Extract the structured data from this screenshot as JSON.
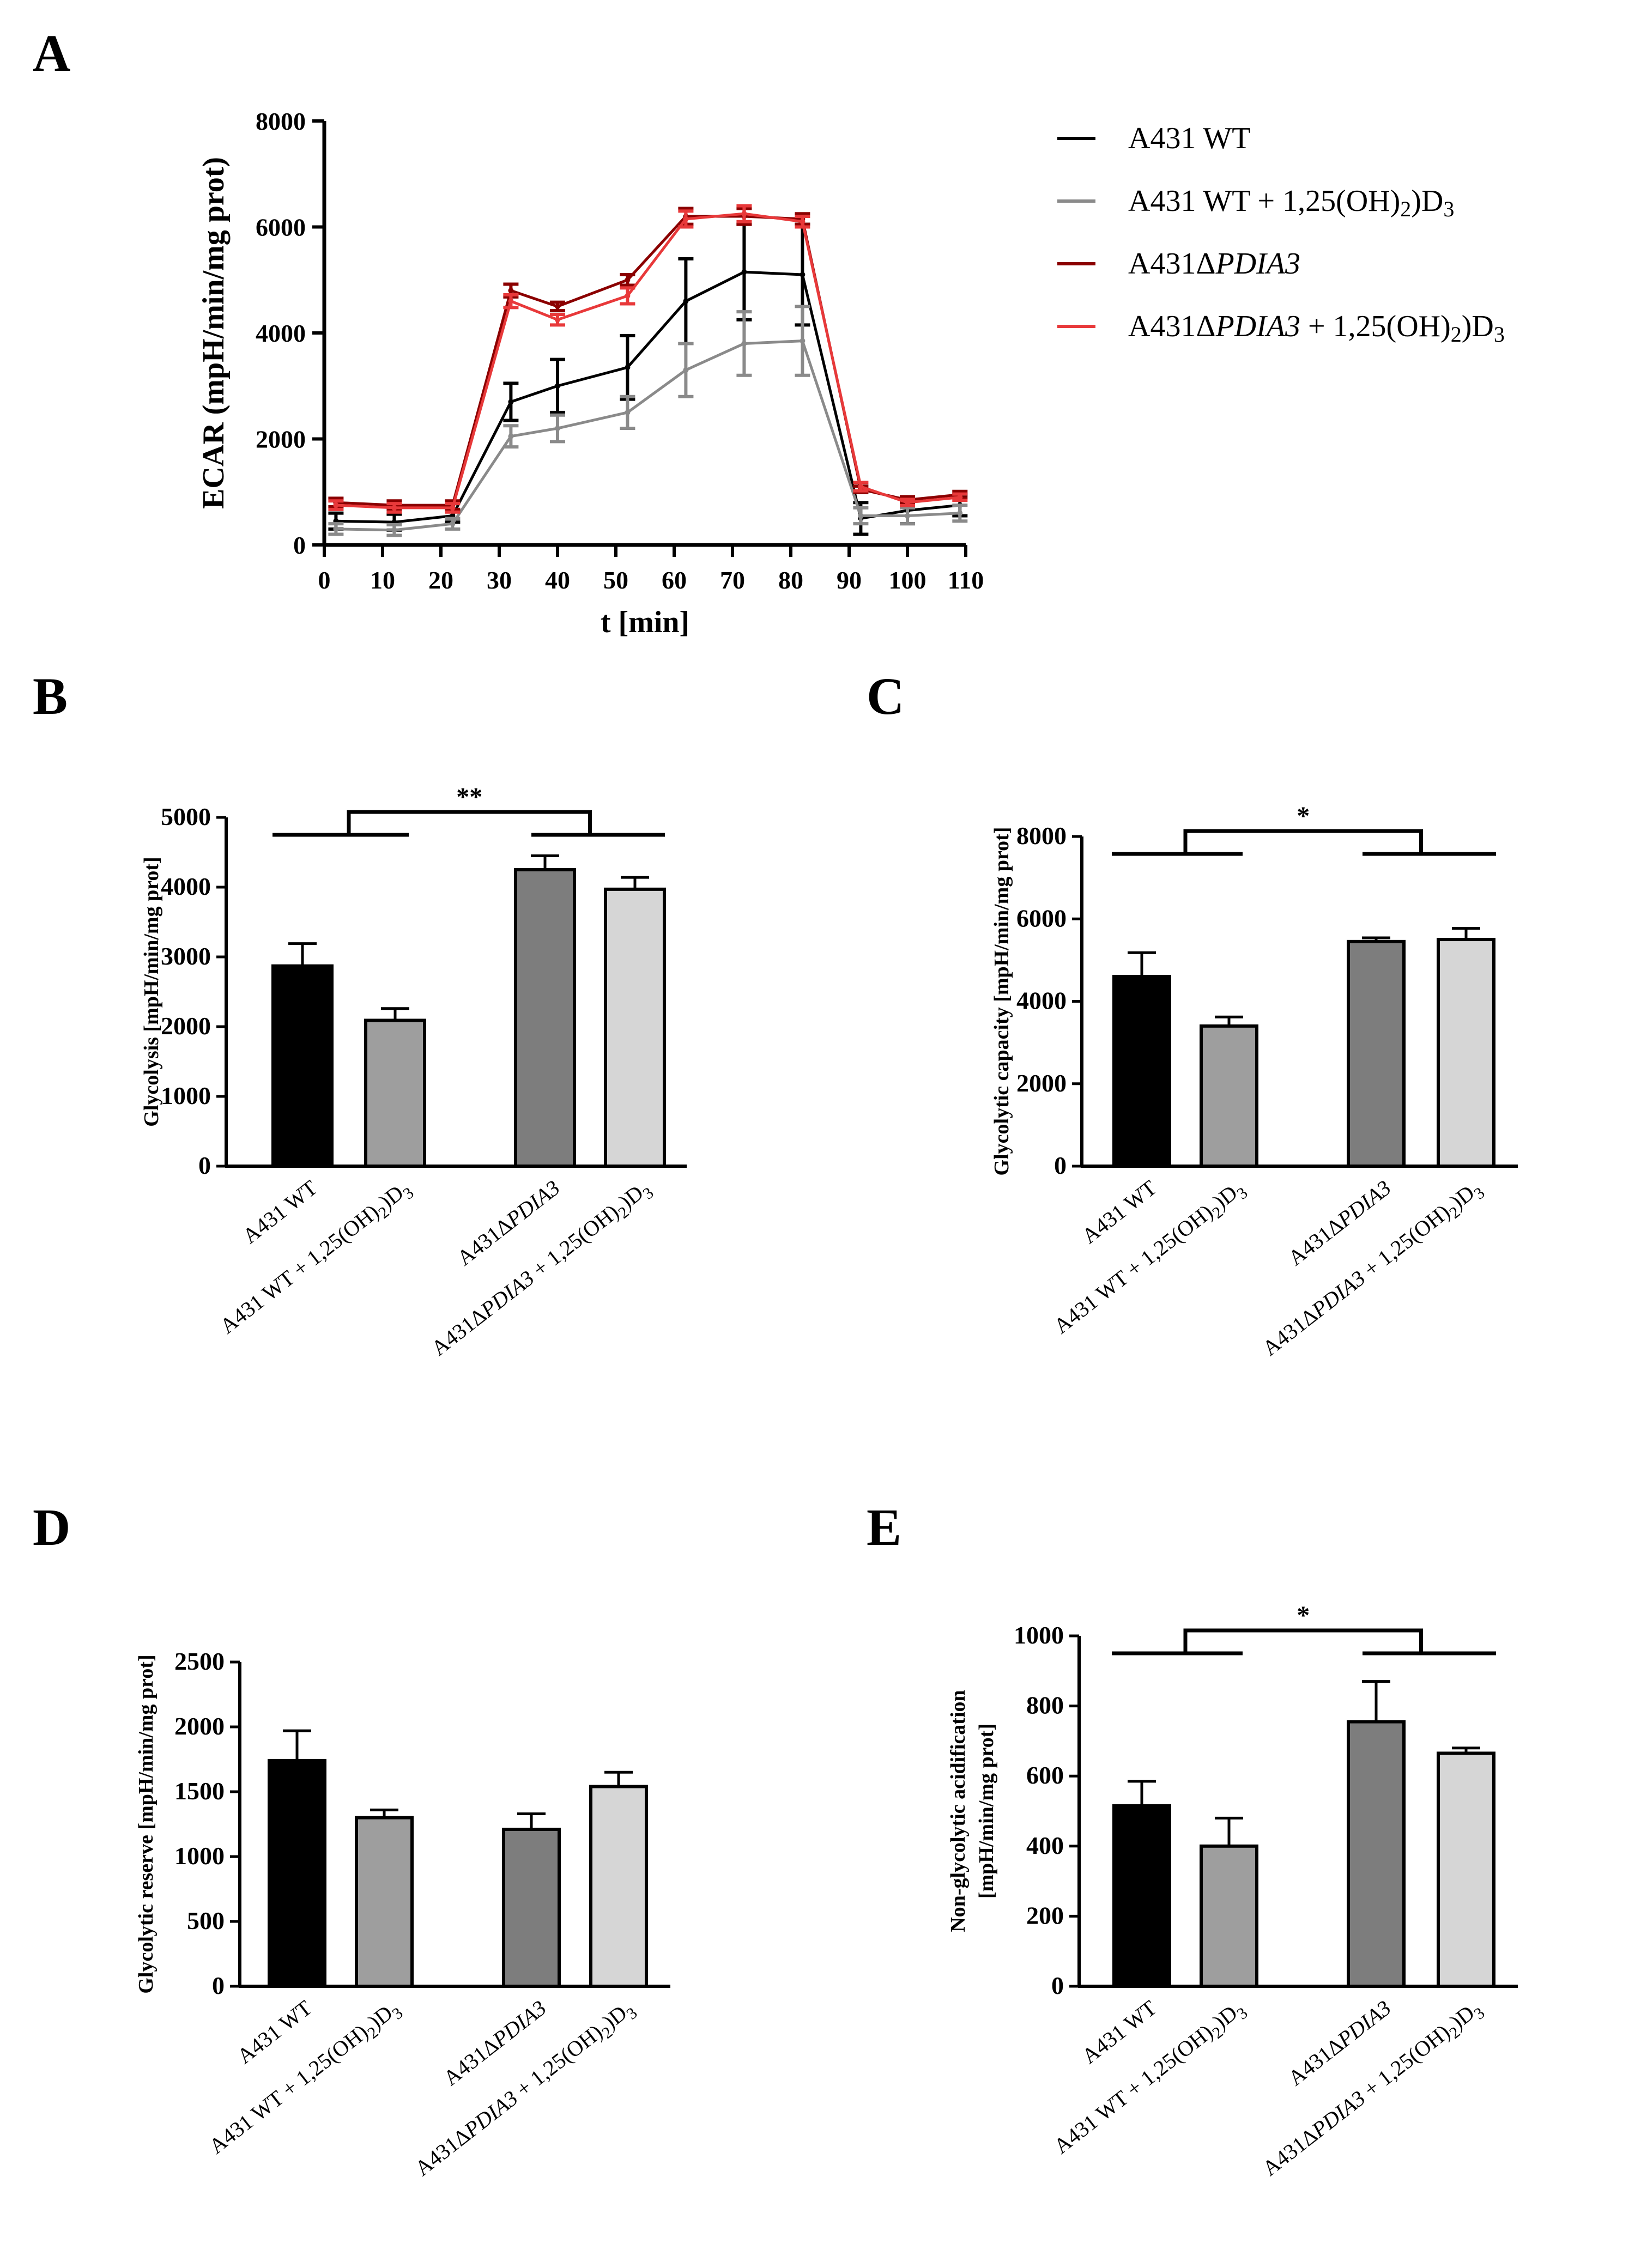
{
  "panel_labels": [
    "A",
    "B",
    "C",
    "D",
    "E"
  ],
  "series_colors": {
    "wt": "#000000",
    "wt_vitd": "#8a8a8a",
    "ko": "#8b0000",
    "ko_vitd": "#e8393a"
  },
  "bar_colors": [
    "#000000",
    "#9e9e9e",
    "#7d7d7d",
    "#d6d6d6"
  ],
  "chart_data": [
    {
      "panel": "A",
      "type": "line",
      "xlabel": "t [min]",
      "ylabel": "ECAR (mpH/min/mg prot)",
      "xlim": [
        0,
        110
      ],
      "ylim": [
        0,
        8000
      ],
      "x_ticks": [
        0,
        10,
        20,
        30,
        40,
        50,
        60,
        70,
        80,
        90,
        100,
        110
      ],
      "y_ticks": [
        0,
        2000,
        4000,
        6000,
        8000
      ],
      "x": [
        2,
        12,
        22,
        32,
        40,
        52,
        62,
        72,
        82,
        92,
        100,
        109
      ],
      "series": [
        {
          "key": "wt",
          "legend": {
            "base": "A431 WT",
            "italic": "",
            "tail": "",
            "vitd": false
          },
          "values": [
            450,
            430,
            550,
            2700,
            3000,
            3350,
            4600,
            5150,
            5100,
            500,
            650,
            750
          ],
          "errors": [
            150,
            150,
            120,
            350,
            500,
            600,
            800,
            900,
            950,
            300,
            250,
            200
          ]
        },
        {
          "key": "wt_vitd",
          "legend": {
            "base": "A431 WT + 1,25(OH)",
            "italic": "",
            "tail": "",
            "vitd": true
          },
          "values": [
            300,
            280,
            400,
            2050,
            2200,
            2500,
            3300,
            3800,
            3850,
            550,
            550,
            600
          ],
          "errors": [
            100,
            100,
            100,
            200,
            250,
            300,
            500,
            600,
            650,
            150,
            150,
            150
          ]
        },
        {
          "key": "ko",
          "legend": {
            "base": "A431Δ",
            "italic": "PDIA3",
            "tail": "",
            "vitd": false
          },
          "values": [
            800,
            750,
            750,
            4800,
            4500,
            5000,
            6200,
            6200,
            6150,
            1050,
            850,
            950
          ],
          "errors": [
            80,
            80,
            80,
            120,
            80,
            100,
            150,
            150,
            100,
            60,
            60,
            60
          ]
        },
        {
          "key": "ko_vitd",
          "legend": {
            "base": "A431Δ",
            "italic": "PDIA3",
            "tail": " + 1,25(OH)",
            "vitd": true
          },
          "values": [
            750,
            700,
            700,
            4600,
            4250,
            4700,
            6150,
            6250,
            6100,
            1100,
            800,
            900
          ],
          "errors": [
            80,
            80,
            80,
            120,
            100,
            150,
            150,
            150,
            100,
            80,
            60,
            60
          ]
        }
      ]
    },
    {
      "panel": "B",
      "type": "bar",
      "ylabel": "Glycolysis [mpH/min/mg prot]",
      "ylim": [
        0,
        5000
      ],
      "y_ticks": [
        0,
        1000,
        2000,
        3000,
        4000,
        5000
      ],
      "values": [
        2870,
        2090,
        4250,
        3970
      ],
      "errors": [
        320,
        170,
        200,
        170
      ],
      "significance": "**"
    },
    {
      "panel": "C",
      "type": "bar",
      "ylabel": "Glycolytic capacity [mpH/min/mg prot]",
      "ylim": [
        0,
        8000
      ],
      "y_ticks": [
        0,
        2000,
        4000,
        6000,
        8000
      ],
      "values": [
        4600,
        3400,
        5450,
        5500
      ],
      "errors": [
        580,
        220,
        90,
        270
      ],
      "significance": "*"
    },
    {
      "panel": "D",
      "type": "bar",
      "ylabel": "Glycolytic reserve [mpH/min/mg prot]",
      "ylim": [
        0,
        2500
      ],
      "y_ticks": [
        0,
        500,
        1000,
        1500,
        2000,
        2500
      ],
      "values": [
        1740,
        1300,
        1210,
        1540
      ],
      "errors": [
        230,
        60,
        120,
        110
      ],
      "significance": ""
    },
    {
      "panel": "E",
      "type": "bar",
      "ylabel": "Non-glycolytic acidification",
      "ylabel2": "[mpH/min/mg prot]",
      "ylim": [
        0,
        1000
      ],
      "y_ticks": [
        0,
        200,
        400,
        600,
        800,
        1000
      ],
      "values": [
        515,
        400,
        755,
        665
      ],
      "errors": [
        70,
        80,
        115,
        15
      ],
      "significance": "*"
    }
  ],
  "bar_categories": [
    {
      "base": "A431 WT",
      "italic": "",
      "tail": "",
      "vitd": false
    },
    {
      "base": "A431 WT + 1,25(OH)",
      "italic": "",
      "tail": "",
      "vitd": true
    },
    {
      "base": "A431Δ",
      "italic": "PDIA3",
      "tail": "",
      "vitd": false
    },
    {
      "base": "A431Δ",
      "italic": "PDIA3",
      "tail": " + 1,25(OH)",
      "vitd": true
    }
  ],
  "subscripts": {
    "first": "2",
    "d_letter": "D",
    "second": "3"
  }
}
